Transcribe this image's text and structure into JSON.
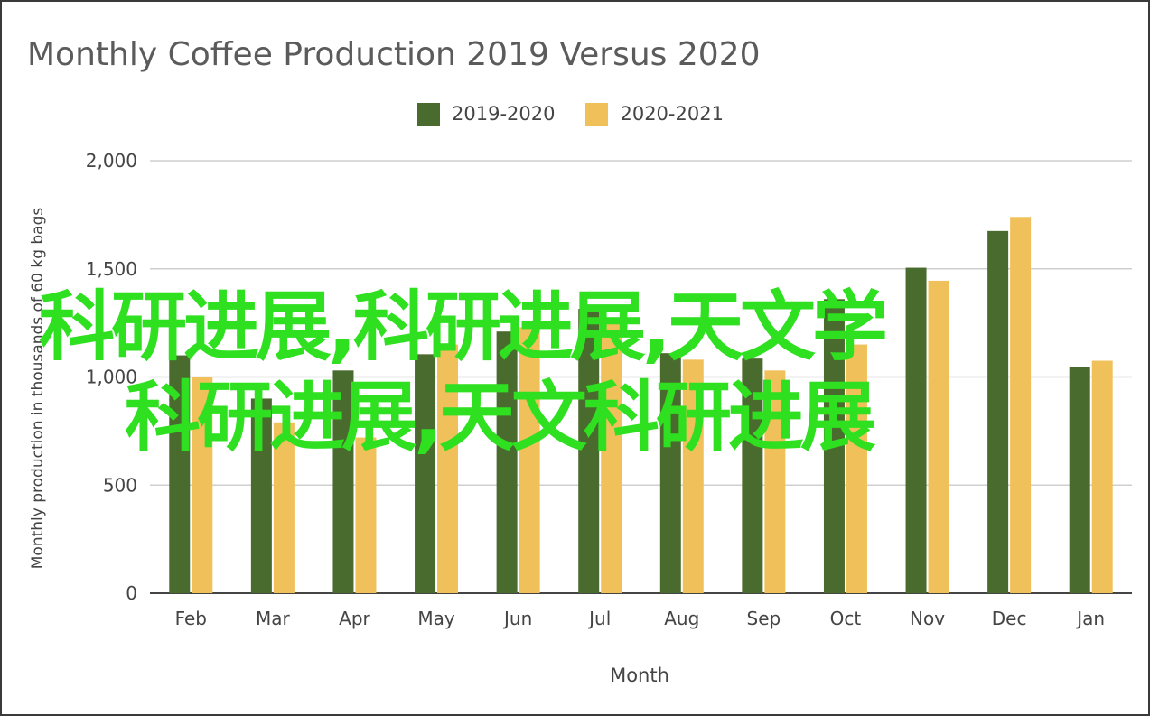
{
  "chart_data": {
    "type": "bar",
    "title": "Monthly Coffee Production 2019 Versus 2020",
    "xlabel": "Month",
    "ylabel": "Monthly production in thousands of 60 kg bags",
    "categories": [
      "Feb",
      "Mar",
      "Apr",
      "May",
      "Jun",
      "Jul",
      "Aug",
      "Sep",
      "Oct",
      "Nov",
      "Dec",
      "Jan"
    ],
    "series": [
      {
        "name": "2019-2020",
        "color": "#4a6b2e",
        "values": [
          1100,
          900,
          1030,
          1105,
          1210,
          1315,
          1110,
          1085,
          1360,
          1505,
          1675,
          1045
        ]
      },
      {
        "name": "2020-2021",
        "color": "#f0c15a",
        "values": [
          1000,
          790,
          720,
          1150,
          1230,
          1260,
          1080,
          1030,
          1150,
          1445,
          1740,
          1075
        ]
      }
    ],
    "ylim": [
      0,
      2000
    ],
    "yticks": [
      0,
      500,
      1000,
      1500,
      2000
    ],
    "ytick_labels": [
      "0",
      "500",
      "1,000",
      "1,500",
      "2,000"
    ],
    "grid": true,
    "legend_position": "top"
  },
  "overlay": {
    "line1": "科研进展,科研进展,天文学",
    "line2": "科研进展,天文科研进展"
  }
}
